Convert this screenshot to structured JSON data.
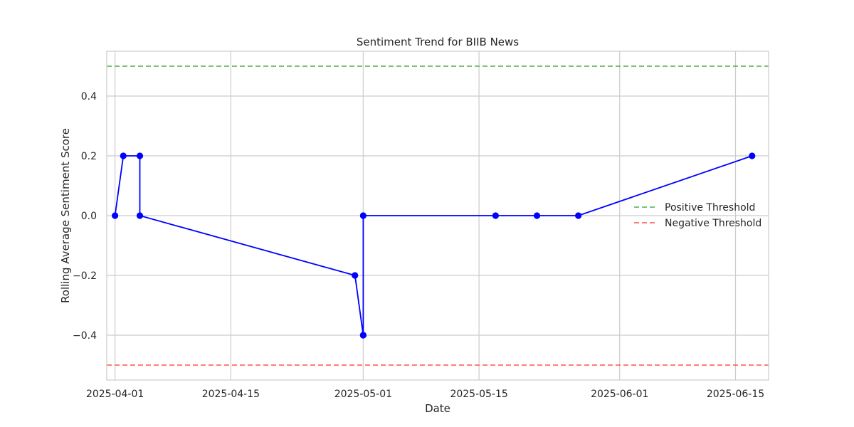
{
  "chart_data": {
    "type": "line",
    "title": "Sentiment Trend for BIIB News",
    "xlabel": "Date",
    "ylabel": "Rolling Average Sentiment Score",
    "x_axis_type": "date",
    "xlim": [
      "2025-03-31",
      "2025-06-19"
    ],
    "ylim": [
      -0.55,
      0.55
    ],
    "x_ticks": [
      "2025-04-01",
      "2025-04-15",
      "2025-05-01",
      "2025-05-15",
      "2025-06-01",
      "2025-06-15"
    ],
    "y_ticks": [
      -0.4,
      -0.2,
      0.0,
      0.2,
      0.4
    ],
    "y_tick_labels": [
      "−0.4",
      "−0.2",
      "0.0",
      "0.2",
      "0.4"
    ],
    "grid": true,
    "legend_position": "right",
    "series": [
      {
        "color": "#0000ff",
        "marker": "circle",
        "x": [
          "2025-04-01",
          "2025-04-02",
          "2025-04-04",
          "2025-04-04",
          "2025-04-30",
          "2025-05-01",
          "2025-05-01",
          "2025-05-01",
          "2025-05-17",
          "2025-05-22",
          "2025-05-27",
          "2025-06-17"
        ],
        "y": [
          0.0,
          0.2,
          0.2,
          0.0,
          -0.2,
          -0.4,
          -0.4,
          0.0,
          0.0,
          0.0,
          0.0,
          0.2
        ]
      }
    ],
    "reference_lines": [
      {
        "name": "Positive Threshold",
        "y": 0.5,
        "color": "#4daf4a",
        "style": "dashed"
      },
      {
        "name": "Negative Threshold",
        "y": -0.5,
        "color": "#ff5050",
        "style": "dashed"
      }
    ]
  }
}
